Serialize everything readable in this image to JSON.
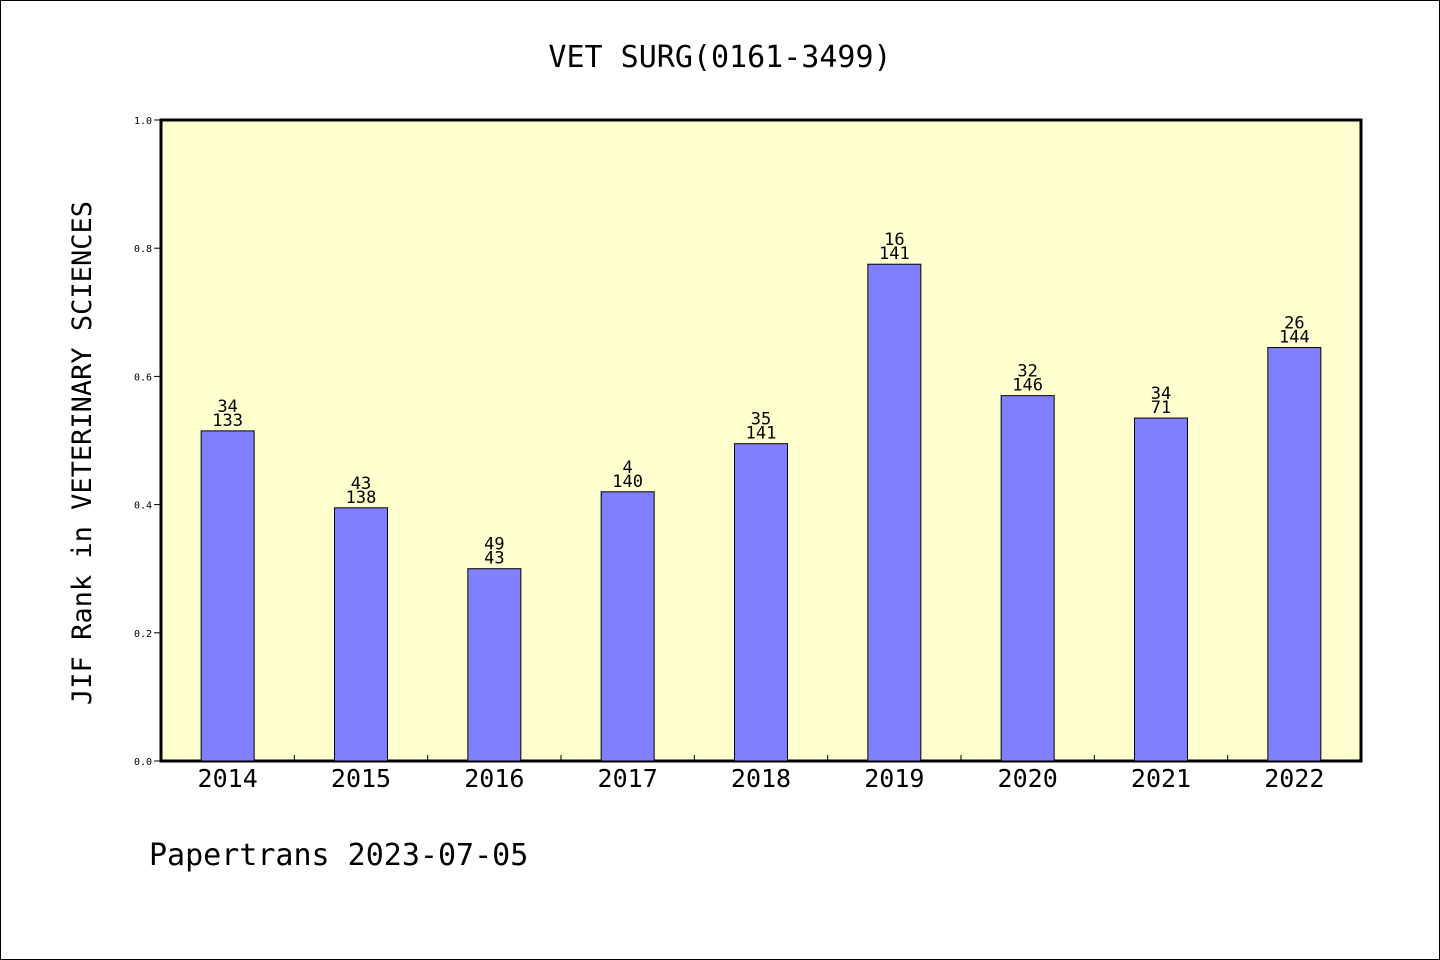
{
  "chart_data": {
    "type": "bar",
    "title": "VET SURG(0161-3499)",
    "ylabel": "JIF Rank in VETERINARY SCIENCES",
    "xlabel": "",
    "categories": [
      "2014",
      "2015",
      "2016",
      "2017",
      "2018",
      "2019",
      "2020",
      "2021",
      "2022"
    ],
    "values": [
      0.515,
      0.395,
      0.3,
      0.42,
      0.495,
      0.775,
      0.57,
      0.535,
      0.645
    ],
    "labels_top": [
      "34",
      "43",
      "49",
      "4",
      "35",
      "16",
      "32",
      "34",
      "26"
    ],
    "labels_bottom": [
      "133",
      "138",
      "43",
      "140",
      "141",
      "141",
      "146",
      "71",
      "144"
    ],
    "ylim": [
      0,
      1.0
    ],
    "yticks": [
      "0.0",
      "0.2",
      "0.4",
      "0.6",
      "0.8",
      "1.0"
    ],
    "grid": false,
    "legend": "none",
    "colors": {
      "bar_fill": "#8080ff",
      "plot_background": "#ffffd0",
      "axis": "#000000"
    }
  },
  "footer": {
    "credit": "Papertrans 2023-07-05"
  }
}
